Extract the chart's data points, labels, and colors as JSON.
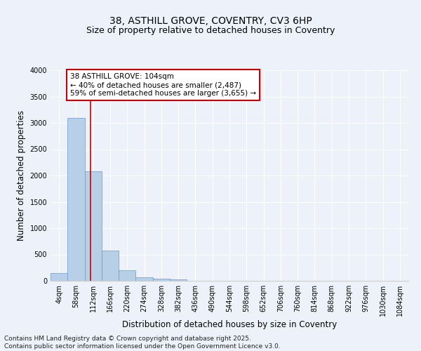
{
  "title1": "38, ASTHILL GROVE, COVENTRY, CV3 6HP",
  "title2": "Size of property relative to detached houses in Coventry",
  "xlabel": "Distribution of detached houses by size in Coventry",
  "ylabel": "Number of detached properties",
  "bin_labels": [
    "4sqm",
    "58sqm",
    "112sqm",
    "166sqm",
    "220sqm",
    "274sqm",
    "328sqm",
    "382sqm",
    "436sqm",
    "490sqm",
    "544sqm",
    "598sqm",
    "652sqm",
    "706sqm",
    "760sqm",
    "814sqm",
    "868sqm",
    "922sqm",
    "976sqm",
    "1030sqm",
    "1084sqm"
  ],
  "bar_values": [
    150,
    3100,
    2080,
    580,
    200,
    70,
    40,
    30,
    5,
    0,
    0,
    0,
    0,
    0,
    0,
    0,
    0,
    0,
    0,
    0,
    0
  ],
  "bar_color": "#b8cfe8",
  "bar_edge_color": "#6699cc",
  "background_color": "#edf2fa",
  "grid_color": "#ffffff",
  "vline_x": 1.83,
  "vline_color": "#cc0000",
  "ylim": [
    0,
    4000
  ],
  "yticks": [
    0,
    500,
    1000,
    1500,
    2000,
    2500,
    3000,
    3500,
    4000
  ],
  "annotation_title": "38 ASTHILL GROVE: 104sqm",
  "annotation_line1": "← 40% of detached houses are smaller (2,487)",
  "annotation_line2": "59% of semi-detached houses are larger (3,655) →",
  "annotation_box_color": "#ffffff",
  "annotation_border_color": "#cc0000",
  "footer_line1": "Contains HM Land Registry data © Crown copyright and database right 2025.",
  "footer_line2": "Contains public sector information licensed under the Open Government Licence v3.0.",
  "title1_fontsize": 10,
  "title2_fontsize": 9,
  "axis_label_fontsize": 8.5,
  "tick_fontsize": 7,
  "annotation_fontsize": 7.5,
  "footer_fontsize": 6.5
}
